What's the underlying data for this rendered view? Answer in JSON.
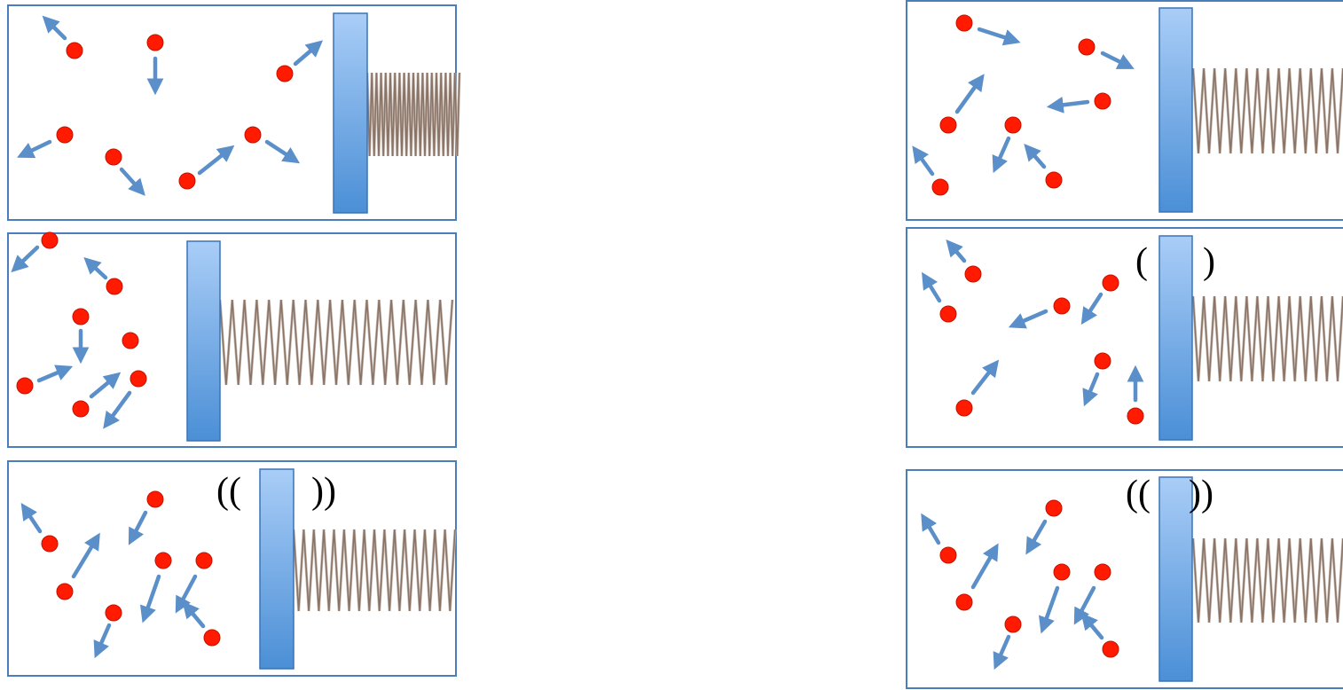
{
  "colors": {
    "frame": "#4a7ebb",
    "piston_light": "#a9cdf7",
    "piston_dark": "#4b8fd6",
    "piston_edge": "#3a73b5",
    "spring": "#8a7468",
    "particle": "#ff1a00",
    "particle_edge": "#c41200",
    "arrow": "#5b8fc9"
  },
  "icons": {
    "particle": "red-dot",
    "velocity": "arrow"
  },
  "panels": [
    {
      "id": "left-1",
      "vibration_label": ""
    },
    {
      "id": "right-1",
      "vibration_label": ""
    },
    {
      "id": "left-2",
      "vibration_label": ""
    },
    {
      "id": "right-2",
      "vibration_label": {
        "open": "(",
        "close": ")"
      }
    },
    {
      "id": "left-3",
      "vibration_label": {
        "open": "((",
        "close": "))"
      }
    },
    {
      "id": "right-3",
      "vibration_label": {
        "open": "((",
        "close": "))"
      }
    }
  ]
}
